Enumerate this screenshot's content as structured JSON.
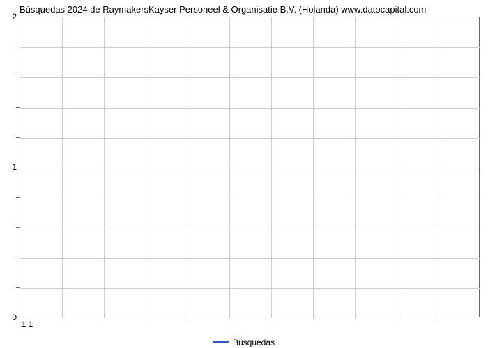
{
  "chart": {
    "type": "line",
    "title": "Búsquedas 2024 de RaymakersKayser Personeel & Organisatie B.V. (Holanda) www.datocapital.com",
    "title_fontsize": 13,
    "title_color": "#000000",
    "background_color": "#ffffff",
    "plot_border_color": "#666666",
    "grid_color": "#cccccc",
    "y": {
      "min": 0,
      "max": 2,
      "major_ticks": [
        0,
        1,
        2
      ],
      "minor_tick_count_between": 4
    },
    "x": {
      "labels": [
        "1",
        "1"
      ],
      "grid_lines": 11
    },
    "legend": {
      "label": "Búsquedas",
      "color": "#3058b8",
      "line_width": 3
    },
    "series": []
  }
}
